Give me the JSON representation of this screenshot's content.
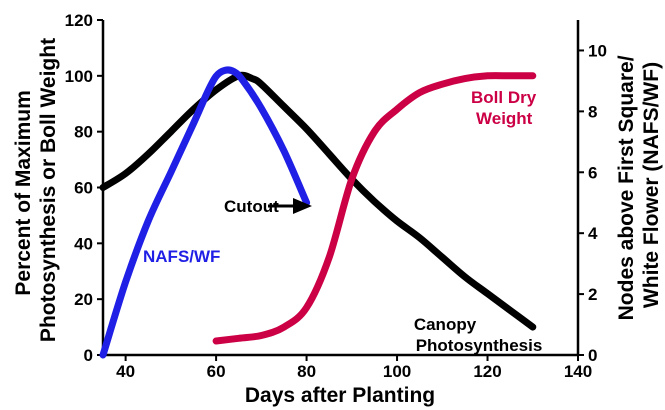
{
  "chart_data": {
    "type": "line",
    "title": "",
    "xlabel": "Days after Planting",
    "ylabel": [
      "Percent of Maximum",
      "Photosynthesis or Boll Weight"
    ],
    "y2label": [
      "Nodes above First Square/",
      "White Flower (NAFS/WF)"
    ],
    "xlim": [
      35,
      140
    ],
    "ylim": [
      0,
      120
    ],
    "y2lim": [
      0,
      11
    ],
    "xticks": [
      "40",
      "60",
      "80",
      "100",
      "120",
      "140"
    ],
    "yticks": [
      "0",
      "20",
      "40",
      "60",
      "80",
      "100",
      "120"
    ],
    "y2ticks": [
      "0",
      "2",
      "4",
      "6",
      "8",
      "10"
    ],
    "grid": false,
    "series": [
      {
        "name": "Canopy Photosynthesis",
        "color": "#000000",
        "axis": "left",
        "points": [
          [
            35,
            60
          ],
          [
            40,
            65
          ],
          [
            45,
            72
          ],
          [
            50,
            80
          ],
          [
            55,
            88
          ],
          [
            60,
            95
          ],
          [
            65,
            100
          ],
          [
            68,
            99
          ],
          [
            70,
            97
          ],
          [
            75,
            89
          ],
          [
            80,
            81
          ],
          [
            85,
            72
          ],
          [
            90,
            63
          ],
          [
            95,
            55
          ],
          [
            100,
            48
          ],
          [
            105,
            42
          ],
          [
            110,
            35
          ],
          [
            115,
            28
          ],
          [
            120,
            22
          ],
          [
            125,
            16
          ],
          [
            130,
            10
          ]
        ]
      },
      {
        "name": "NAFS/WF",
        "color": "#1f1fe6",
        "axis": "right",
        "points": [
          [
            35,
            0
          ],
          [
            40,
            2.4
          ],
          [
            45,
            4.4
          ],
          [
            50,
            6.0
          ],
          [
            55,
            7.6
          ],
          [
            58,
            8.6
          ],
          [
            60,
            9.15
          ],
          [
            62,
            9.35
          ],
          [
            64,
            9.3
          ],
          [
            66,
            9.0
          ],
          [
            70,
            8.1
          ],
          [
            75,
            6.7
          ],
          [
            80,
            5.0
          ]
        ]
      },
      {
        "name": "Boll Dry Weight",
        "color": "#cc0044",
        "axis": "left",
        "points": [
          [
            60,
            5
          ],
          [
            65,
            6
          ],
          [
            70,
            7
          ],
          [
            75,
            10
          ],
          [
            80,
            17
          ],
          [
            85,
            35
          ],
          [
            90,
            63
          ],
          [
            95,
            80
          ],
          [
            100,
            88
          ],
          [
            105,
            94
          ],
          [
            110,
            97
          ],
          [
            115,
            99
          ],
          [
            120,
            100
          ],
          [
            125,
            100
          ],
          [
            130,
            100
          ]
        ]
      }
    ],
    "annotations": [
      {
        "text": "Cutout",
        "color": "#000000"
      },
      {
        "text": "NAFS/WF",
        "color": "#1f1fe6"
      },
      {
        "text": "Boll Dry",
        "color": "#cc0044"
      },
      {
        "text": "Weight",
        "color": "#cc0044"
      },
      {
        "text": "Canopy",
        "color": "#000000"
      },
      {
        "text": "Photosynthesis",
        "color": "#000000"
      }
    ]
  }
}
